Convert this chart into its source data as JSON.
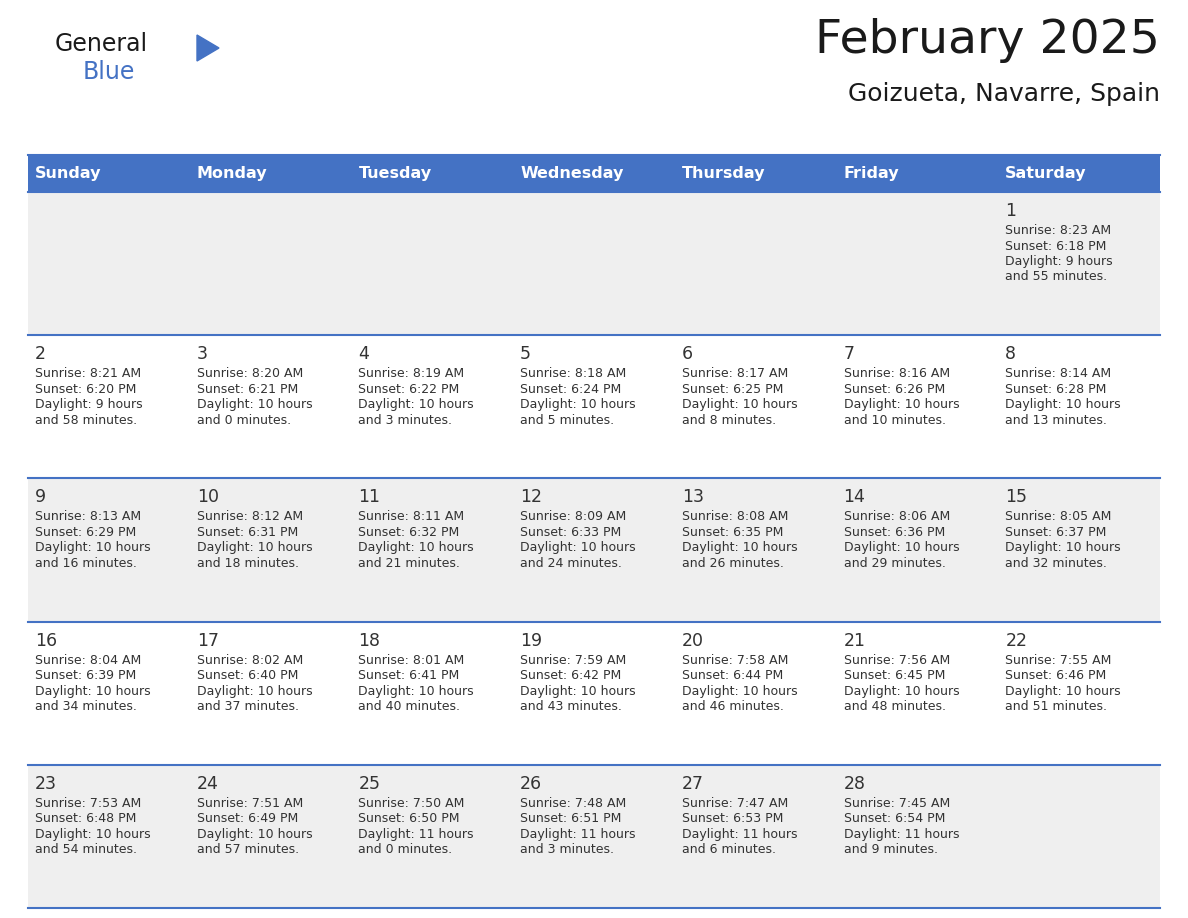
{
  "title": "February 2025",
  "subtitle": "Goizueta, Navarre, Spain",
  "header_bg": "#4472C4",
  "header_text_color": "#FFFFFF",
  "cell_bg_odd": "#EFEFEF",
  "cell_bg_even": "#FFFFFF",
  "border_color": "#4472C4",
  "day_headers": [
    "Sunday",
    "Monday",
    "Tuesday",
    "Wednesday",
    "Thursday",
    "Friday",
    "Saturday"
  ],
  "title_color": "#1a1a1a",
  "subtitle_color": "#1a1a1a",
  "day_number_color": "#333333",
  "info_color": "#333333",
  "days": [
    {
      "day": 1,
      "col": 6,
      "row": 0,
      "sunrise": "8:23 AM",
      "sunset": "6:18 PM",
      "daylight": "9 hours and 55 minutes."
    },
    {
      "day": 2,
      "col": 0,
      "row": 1,
      "sunrise": "8:21 AM",
      "sunset": "6:20 PM",
      "daylight": "9 hours and 58 minutes."
    },
    {
      "day": 3,
      "col": 1,
      "row": 1,
      "sunrise": "8:20 AM",
      "sunset": "6:21 PM",
      "daylight": "10 hours and 0 minutes."
    },
    {
      "day": 4,
      "col": 2,
      "row": 1,
      "sunrise": "8:19 AM",
      "sunset": "6:22 PM",
      "daylight": "10 hours and 3 minutes."
    },
    {
      "day": 5,
      "col": 3,
      "row": 1,
      "sunrise": "8:18 AM",
      "sunset": "6:24 PM",
      "daylight": "10 hours and 5 minutes."
    },
    {
      "day": 6,
      "col": 4,
      "row": 1,
      "sunrise": "8:17 AM",
      "sunset": "6:25 PM",
      "daylight": "10 hours and 8 minutes."
    },
    {
      "day": 7,
      "col": 5,
      "row": 1,
      "sunrise": "8:16 AM",
      "sunset": "6:26 PM",
      "daylight": "10 hours and 10 minutes."
    },
    {
      "day": 8,
      "col": 6,
      "row": 1,
      "sunrise": "8:14 AM",
      "sunset": "6:28 PM",
      "daylight": "10 hours and 13 minutes."
    },
    {
      "day": 9,
      "col": 0,
      "row": 2,
      "sunrise": "8:13 AM",
      "sunset": "6:29 PM",
      "daylight": "10 hours and 16 minutes."
    },
    {
      "day": 10,
      "col": 1,
      "row": 2,
      "sunrise": "8:12 AM",
      "sunset": "6:31 PM",
      "daylight": "10 hours and 18 minutes."
    },
    {
      "day": 11,
      "col": 2,
      "row": 2,
      "sunrise": "8:11 AM",
      "sunset": "6:32 PM",
      "daylight": "10 hours and 21 minutes."
    },
    {
      "day": 12,
      "col": 3,
      "row": 2,
      "sunrise": "8:09 AM",
      "sunset": "6:33 PM",
      "daylight": "10 hours and 24 minutes."
    },
    {
      "day": 13,
      "col": 4,
      "row": 2,
      "sunrise": "8:08 AM",
      "sunset": "6:35 PM",
      "daylight": "10 hours and 26 minutes."
    },
    {
      "day": 14,
      "col": 5,
      "row": 2,
      "sunrise": "8:06 AM",
      "sunset": "6:36 PM",
      "daylight": "10 hours and 29 minutes."
    },
    {
      "day": 15,
      "col": 6,
      "row": 2,
      "sunrise": "8:05 AM",
      "sunset": "6:37 PM",
      "daylight": "10 hours and 32 minutes."
    },
    {
      "day": 16,
      "col": 0,
      "row": 3,
      "sunrise": "8:04 AM",
      "sunset": "6:39 PM",
      "daylight": "10 hours and 34 minutes."
    },
    {
      "day": 17,
      "col": 1,
      "row": 3,
      "sunrise": "8:02 AM",
      "sunset": "6:40 PM",
      "daylight": "10 hours and 37 minutes."
    },
    {
      "day": 18,
      "col": 2,
      "row": 3,
      "sunrise": "8:01 AM",
      "sunset": "6:41 PM",
      "daylight": "10 hours and 40 minutes."
    },
    {
      "day": 19,
      "col": 3,
      "row": 3,
      "sunrise": "7:59 AM",
      "sunset": "6:42 PM",
      "daylight": "10 hours and 43 minutes."
    },
    {
      "day": 20,
      "col": 4,
      "row": 3,
      "sunrise": "7:58 AM",
      "sunset": "6:44 PM",
      "daylight": "10 hours and 46 minutes."
    },
    {
      "day": 21,
      "col": 5,
      "row": 3,
      "sunrise": "7:56 AM",
      "sunset": "6:45 PM",
      "daylight": "10 hours and 48 minutes."
    },
    {
      "day": 22,
      "col": 6,
      "row": 3,
      "sunrise": "7:55 AM",
      "sunset": "6:46 PM",
      "daylight": "10 hours and 51 minutes."
    },
    {
      "day": 23,
      "col": 0,
      "row": 4,
      "sunrise": "7:53 AM",
      "sunset": "6:48 PM",
      "daylight": "10 hours and 54 minutes."
    },
    {
      "day": 24,
      "col": 1,
      "row": 4,
      "sunrise": "7:51 AM",
      "sunset": "6:49 PM",
      "daylight": "10 hours and 57 minutes."
    },
    {
      "day": 25,
      "col": 2,
      "row": 4,
      "sunrise": "7:50 AM",
      "sunset": "6:50 PM",
      "daylight": "11 hours and 0 minutes."
    },
    {
      "day": 26,
      "col": 3,
      "row": 4,
      "sunrise": "7:48 AM",
      "sunset": "6:51 PM",
      "daylight": "11 hours and 3 minutes."
    },
    {
      "day": 27,
      "col": 4,
      "row": 4,
      "sunrise": "7:47 AM",
      "sunset": "6:53 PM",
      "daylight": "11 hours and 6 minutes."
    },
    {
      "day": 28,
      "col": 5,
      "row": 4,
      "sunrise": "7:45 AM",
      "sunset": "6:54 PM",
      "daylight": "11 hours and 9 minutes."
    }
  ],
  "num_rows": 5,
  "num_cols": 7,
  "logo_text_general": "General",
  "logo_text_blue": "Blue",
  "logo_triangle_color": "#4472C4",
  "logo_general_color": "#1a1a1a",
  "logo_blue_color": "#4472C4",
  "figwidth": 11.88,
  "figheight": 9.18,
  "dpi": 100
}
